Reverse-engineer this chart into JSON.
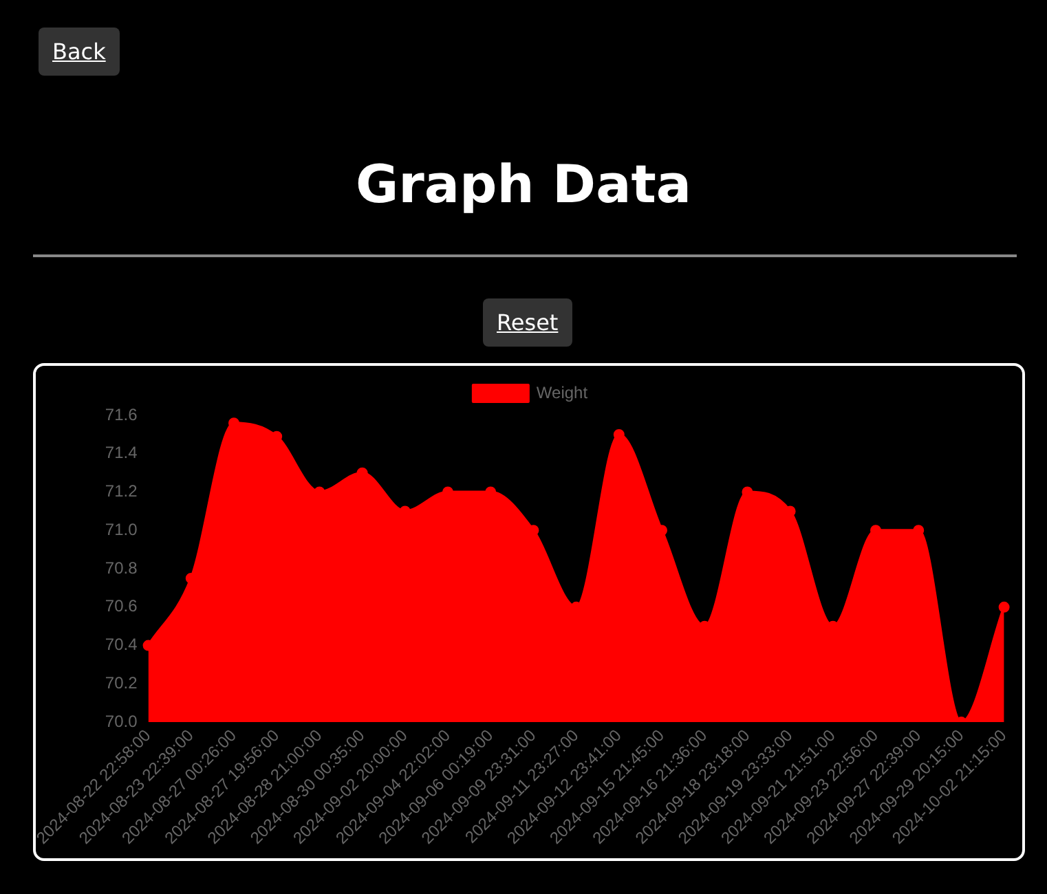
{
  "chart_data": {
    "type": "area",
    "title": "Graph Data",
    "annotations": [
      "Back",
      "Reset"
    ],
    "categories": [
      "2024-08-22 22:58:00",
      "2024-08-23 22:39:00",
      "2024-08-27 00:26:00",
      "2024-08-27 19:56:00",
      "2024-08-28 21:00:00",
      "2024-08-30 00:35:00",
      "2024-09-02 20:00:00",
      "2024-09-04 22:02:00",
      "2024-09-06 00:19:00",
      "2024-09-09 23:31:00",
      "2024-09-11 23:27:00",
      "2024-09-12 23:41:00",
      "2024-09-15 21:45:00",
      "2024-09-16 21:36:00",
      "2024-09-18 23:18:00",
      "2024-09-19 23:33:00",
      "2024-09-21 21:51:00",
      "2024-09-23 22:56:00",
      "2024-09-27 22:39:00",
      "2024-09-29 20:15:00",
      "2024-10-02 21:15:00"
    ],
    "series": [
      {
        "name": "Weight",
        "color": "#ff0000",
        "values": [
          70.4,
          70.75,
          71.56,
          71.49,
          71.2,
          71.3,
          71.1,
          71.2,
          71.2,
          71.0,
          70.6,
          71.5,
          71.0,
          70.5,
          71.2,
          71.1,
          70.5,
          71.0,
          71.0,
          70.0,
          70.6
        ]
      }
    ],
    "ylim": [
      70,
      71.6
    ],
    "yticks": [
      {
        "value": 70,
        "label": "70.0"
      },
      70.2,
      70.4,
      70.6,
      70.8,
      {
        "value": 71,
        "label": "71.0"
      },
      71.2,
      71.4,
      71.6
    ],
    "legend": "top",
    "marker": "circle"
  }
}
